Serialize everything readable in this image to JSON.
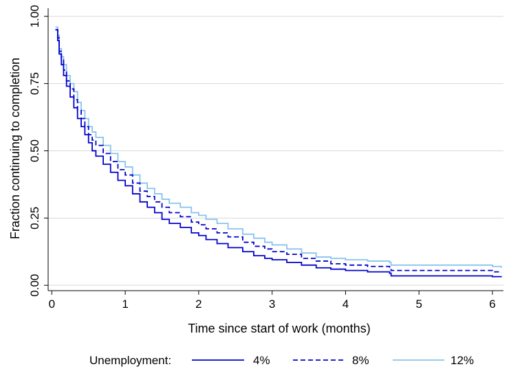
{
  "chart_data": {
    "type": "line",
    "title": "",
    "xlabel": "Time since start of work (months)",
    "ylabel": "Fraction continuing to completion",
    "xlim": [
      -0.05,
      6.15
    ],
    "ylim": [
      -0.02,
      1.03
    ],
    "xticks": [
      0,
      1,
      2,
      3,
      4,
      5,
      6
    ],
    "xtick_labels": [
      "0",
      "1",
      "2",
      "3",
      "4",
      "5",
      "6"
    ],
    "yticks": [
      0,
      0.25,
      0.5,
      0.75,
      1
    ],
    "ytick_labels": [
      "0.00",
      "0.25",
      "0.50",
      "0.75",
      "1.00"
    ],
    "grid": "horizontal",
    "step": true,
    "legend": {
      "title": "Unemployment:",
      "placement": "bottom"
    },
    "series": [
      {
        "name": "4%",
        "color": "#0000cd",
        "dash": "solid",
        "x": [
          0.05,
          0.08,
          0.1,
          0.13,
          0.16,
          0.2,
          0.25,
          0.3,
          0.35,
          0.4,
          0.45,
          0.5,
          0.55,
          0.6,
          0.7,
          0.8,
          0.9,
          1.0,
          1.1,
          1.2,
          1.3,
          1.4,
          1.5,
          1.6,
          1.75,
          1.9,
          2.0,
          2.1,
          2.25,
          2.4,
          2.6,
          2.75,
          2.9,
          3.0,
          3.2,
          3.4,
          3.6,
          3.8,
          4.0,
          4.3,
          4.6,
          4.62,
          5.0,
          5.5,
          6.0,
          6.12
        ],
        "y": [
          0.95,
          0.91,
          0.86,
          0.82,
          0.78,
          0.74,
          0.7,
          0.66,
          0.62,
          0.59,
          0.56,
          0.53,
          0.5,
          0.48,
          0.45,
          0.42,
          0.39,
          0.37,
          0.34,
          0.31,
          0.29,
          0.27,
          0.245,
          0.23,
          0.215,
          0.195,
          0.185,
          0.17,
          0.155,
          0.14,
          0.125,
          0.11,
          0.1,
          0.095,
          0.085,
          0.075,
          0.065,
          0.06,
          0.055,
          0.05,
          0.045,
          0.035,
          0.035,
          0.035,
          0.032,
          0.03
        ]
      },
      {
        "name": "8%",
        "color": "#0000cd",
        "dash": "dashed",
        "x": [
          0.05,
          0.08,
          0.1,
          0.13,
          0.16,
          0.2,
          0.25,
          0.3,
          0.35,
          0.4,
          0.45,
          0.5,
          0.55,
          0.6,
          0.7,
          0.8,
          0.9,
          1.0,
          1.1,
          1.2,
          1.3,
          1.4,
          1.5,
          1.6,
          1.75,
          1.9,
          2.0,
          2.1,
          2.25,
          2.4,
          2.6,
          2.75,
          2.9,
          3.0,
          3.2,
          3.4,
          3.6,
          3.8,
          4.0,
          4.3,
          4.6,
          4.62,
          5.0,
          5.5,
          6.0,
          6.12
        ],
        "y": [
          0.95,
          0.92,
          0.87,
          0.84,
          0.8,
          0.76,
          0.73,
          0.69,
          0.65,
          0.62,
          0.59,
          0.56,
          0.54,
          0.52,
          0.49,
          0.46,
          0.43,
          0.41,
          0.38,
          0.35,
          0.33,
          0.31,
          0.29,
          0.27,
          0.255,
          0.235,
          0.225,
          0.21,
          0.195,
          0.18,
          0.16,
          0.145,
          0.135,
          0.125,
          0.115,
          0.1,
          0.09,
          0.08,
          0.075,
          0.07,
          0.065,
          0.055,
          0.055,
          0.055,
          0.05,
          0.048
        ]
      },
      {
        "name": "12%",
        "color": "#87c3ee",
        "dash": "solid",
        "x": [
          0.05,
          0.08,
          0.1,
          0.13,
          0.16,
          0.2,
          0.25,
          0.3,
          0.35,
          0.4,
          0.45,
          0.5,
          0.55,
          0.6,
          0.7,
          0.8,
          0.9,
          1.0,
          1.1,
          1.2,
          1.3,
          1.4,
          1.5,
          1.6,
          1.75,
          1.9,
          2.0,
          2.1,
          2.25,
          2.4,
          2.6,
          2.75,
          2.9,
          3.0,
          3.2,
          3.4,
          3.6,
          3.8,
          4.0,
          4.3,
          4.6,
          4.62,
          5.0,
          5.5,
          6.0,
          6.12
        ],
        "y": [
          0.96,
          0.93,
          0.88,
          0.85,
          0.82,
          0.78,
          0.75,
          0.72,
          0.68,
          0.65,
          0.62,
          0.59,
          0.57,
          0.55,
          0.52,
          0.49,
          0.46,
          0.44,
          0.41,
          0.38,
          0.36,
          0.34,
          0.32,
          0.305,
          0.29,
          0.27,
          0.26,
          0.245,
          0.23,
          0.21,
          0.19,
          0.175,
          0.16,
          0.15,
          0.135,
          0.12,
          0.105,
          0.1,
          0.095,
          0.09,
          0.085,
          0.075,
          0.075,
          0.075,
          0.07,
          0.065
        ]
      }
    ]
  }
}
